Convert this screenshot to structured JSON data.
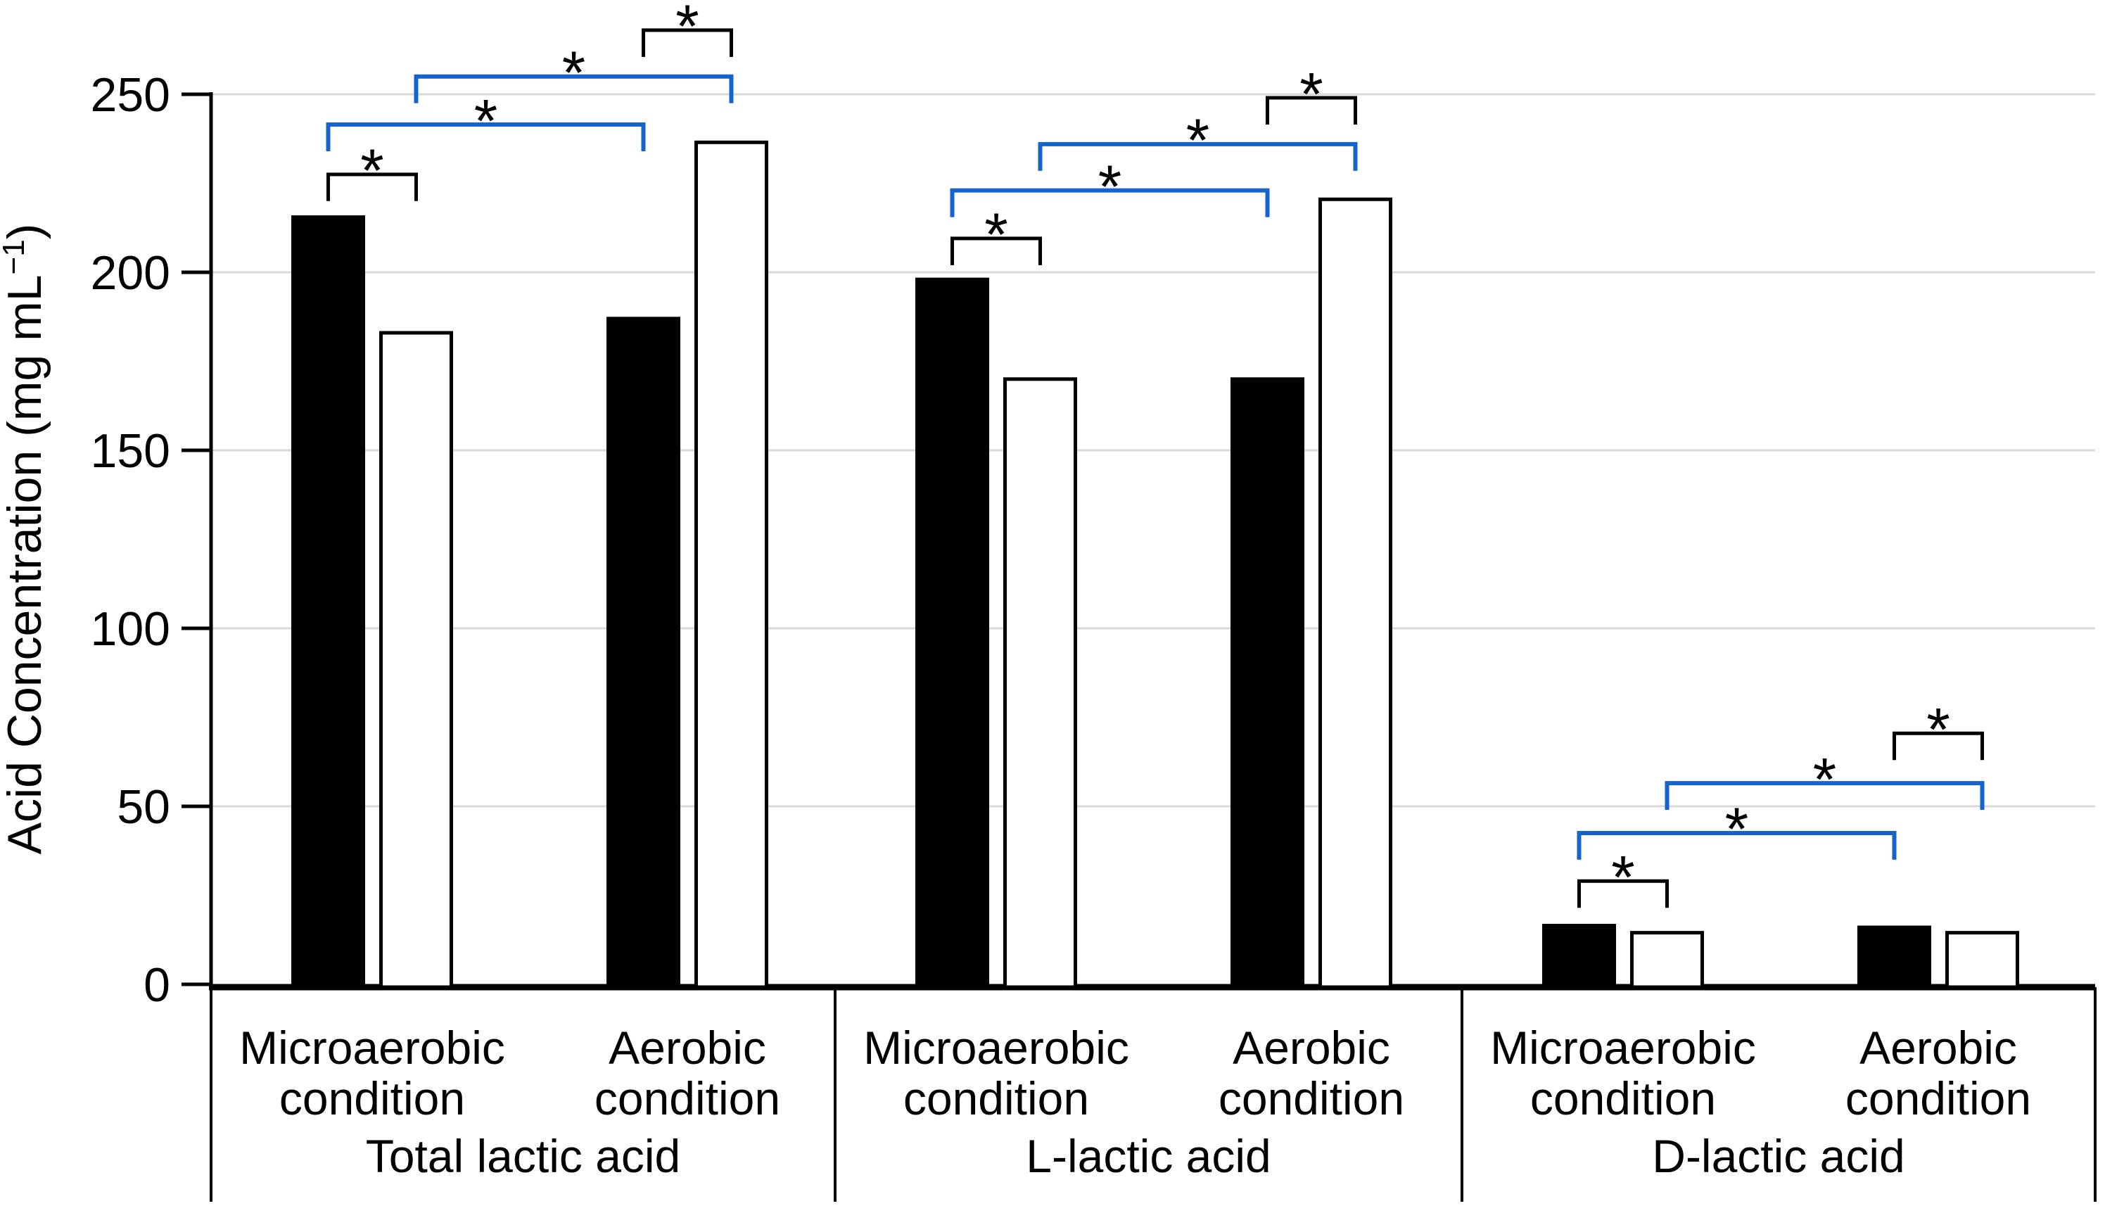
{
  "chart_data": {
    "type": "bar",
    "title": "",
    "ylabel": "Acid Concentration (mg mL⁻¹)",
    "ylabel_parts": {
      "base": "Acid Concentration (mg mL",
      "superscript": "−1",
      "close": ")"
    },
    "ylim": [
      0,
      250
    ],
    "yticks": [
      0,
      50,
      100,
      150,
      200,
      250
    ],
    "y_tick_labels": [
      "0",
      "50",
      "100",
      "150",
      "200",
      "250"
    ],
    "grid": true,
    "legend_position": "none",
    "significance_marker": "*",
    "colors": {
      "bar_black_fill": "#000000",
      "bar_white_fill": "#ffffff",
      "bar_outline": "#000000",
      "significance_blue": "#1464cc",
      "significance_black": "#000000",
      "gridline": "#d9d9d9",
      "axis": "#000000"
    },
    "series_names": [
      "black-filled",
      "white-open"
    ],
    "groups": [
      {
        "label": "Total lactic acid",
        "conditions": [
          {
            "label": "Microaerobic condition",
            "label_lines": [
              "Microaerobic",
              "condition"
            ],
            "black": 215.5,
            "white": 183
          },
          {
            "label": "Aerobic condition",
            "label_lines": [
              "Aerobic",
              "condition"
            ],
            "black": 187,
            "white": 236.5
          }
        ],
        "significance_brackets": [
          {
            "color": "black",
            "connects": [
              "microaerobic-black",
              "microaerobic-white"
            ],
            "marker": "*",
            "bar_y": 227.5,
            "leg_y": 220,
            "star_y": 231
          },
          {
            "color": "blue",
            "connects": [
              "microaerobic-black",
              "aerobic-black"
            ],
            "marker": "*",
            "bar_y": 241.5,
            "leg_y": 234,
            "star_y": 245
          },
          {
            "color": "blue",
            "connects": [
              "microaerobic-white",
              "aerobic-white"
            ],
            "marker": "*",
            "bar_y": 255,
            "leg_y": 247.5,
            "star_y": 258.5
          },
          {
            "color": "black",
            "connects": [
              "aerobic-black",
              "aerobic-white"
            ],
            "marker": "*",
            "bar_y": 268,
            "leg_y": 260.5,
            "star_y": 271.5
          }
        ]
      },
      {
        "label": "L-lactic acid",
        "conditions": [
          {
            "label": "Microaerobic condition",
            "label_lines": [
              "Microaerobic",
              "condition"
            ],
            "black": 198,
            "white": 170
          },
          {
            "label": "Aerobic condition",
            "label_lines": [
              "Aerobic",
              "condition"
            ],
            "black": 170,
            "white": 220.5
          }
        ],
        "significance_brackets": [
          {
            "color": "black",
            "connects": [
              "microaerobic-black",
              "microaerobic-white"
            ],
            "marker": "*",
            "bar_y": 209.5,
            "leg_y": 202,
            "star_y": 213
          },
          {
            "color": "blue",
            "connects": [
              "microaerobic-black",
              "aerobic-black"
            ],
            "marker": "*",
            "bar_y": 223,
            "leg_y": 215.5,
            "star_y": 226.5
          },
          {
            "color": "blue",
            "connects": [
              "microaerobic-white",
              "aerobic-white"
            ],
            "marker": "*",
            "bar_y": 236,
            "leg_y": 228.5,
            "star_y": 239.5
          },
          {
            "color": "black",
            "connects": [
              "aerobic-black",
              "aerobic-white"
            ],
            "marker": "*",
            "bar_y": 249,
            "leg_y": 241.5,
            "star_y": 252.5
          }
        ]
      },
      {
        "label": "D-lactic acid",
        "conditions": [
          {
            "label": "Microaerobic condition",
            "label_lines": [
              "Microaerobic",
              "condition"
            ],
            "black": 16.5,
            "white": 14.5
          },
          {
            "label": "Aerobic condition",
            "label_lines": [
              "Aerobic",
              "condition"
            ],
            "black": 16,
            "white": 14.5
          }
        ],
        "significance_brackets": [
          {
            "color": "black",
            "connects": [
              "microaerobic-black",
              "microaerobic-white"
            ],
            "marker": "*",
            "bar_y": 29,
            "leg_y": 21.5,
            "star_y": 32.5
          },
          {
            "color": "blue",
            "connects": [
              "microaerobic-black",
              "aerobic-black"
            ],
            "marker": "*",
            "bar_y": 42.5,
            "leg_y": 35,
            "star_y": 46
          },
          {
            "color": "blue",
            "connects": [
              "microaerobic-white",
              "aerobic-white"
            ],
            "marker": "*",
            "bar_y": 56.5,
            "leg_y": 49,
            "star_y": 60
          },
          {
            "color": "black",
            "connects": [
              "aerobic-black",
              "aerobic-white"
            ],
            "marker": "*",
            "bar_y": 70.5,
            "leg_y": 63,
            "star_y": 74
          }
        ]
      }
    ]
  }
}
